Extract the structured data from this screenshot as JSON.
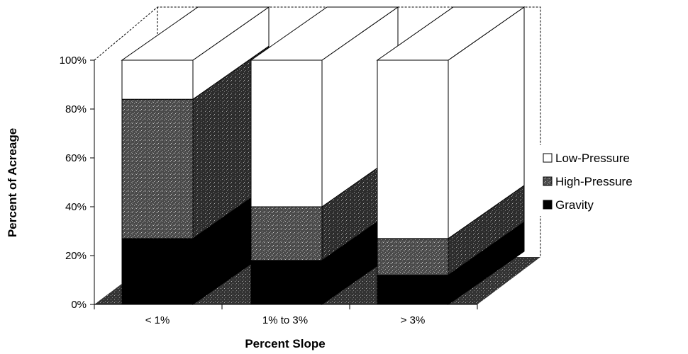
{
  "chart_data": {
    "type": "bar",
    "stacked": true,
    "three_d": true,
    "title": "",
    "xlabel": "Percent Slope",
    "ylabel": "Percent of Acreage",
    "categories": [
      "< 1%",
      "1% to 3%",
      "> 3%"
    ],
    "ylim": [
      0,
      100
    ],
    "yticks": [
      "0%",
      "20%",
      "40%",
      "60%",
      "80%",
      "100%"
    ],
    "series": [
      {
        "name": "Gravity",
        "values": [
          27,
          18,
          12
        ],
        "color": "#000000"
      },
      {
        "name": "High-Pressure",
        "values": [
          57,
          22,
          15
        ],
        "color": "#555555"
      },
      {
        "name": "Low-Pressure",
        "values": [
          16,
          60,
          73
        ],
        "color": "#ffffff"
      }
    ],
    "legend_order": [
      "Low-Pressure",
      "High-Pressure",
      "Gravity"
    ],
    "legend_position": "right",
    "grid": false
  }
}
